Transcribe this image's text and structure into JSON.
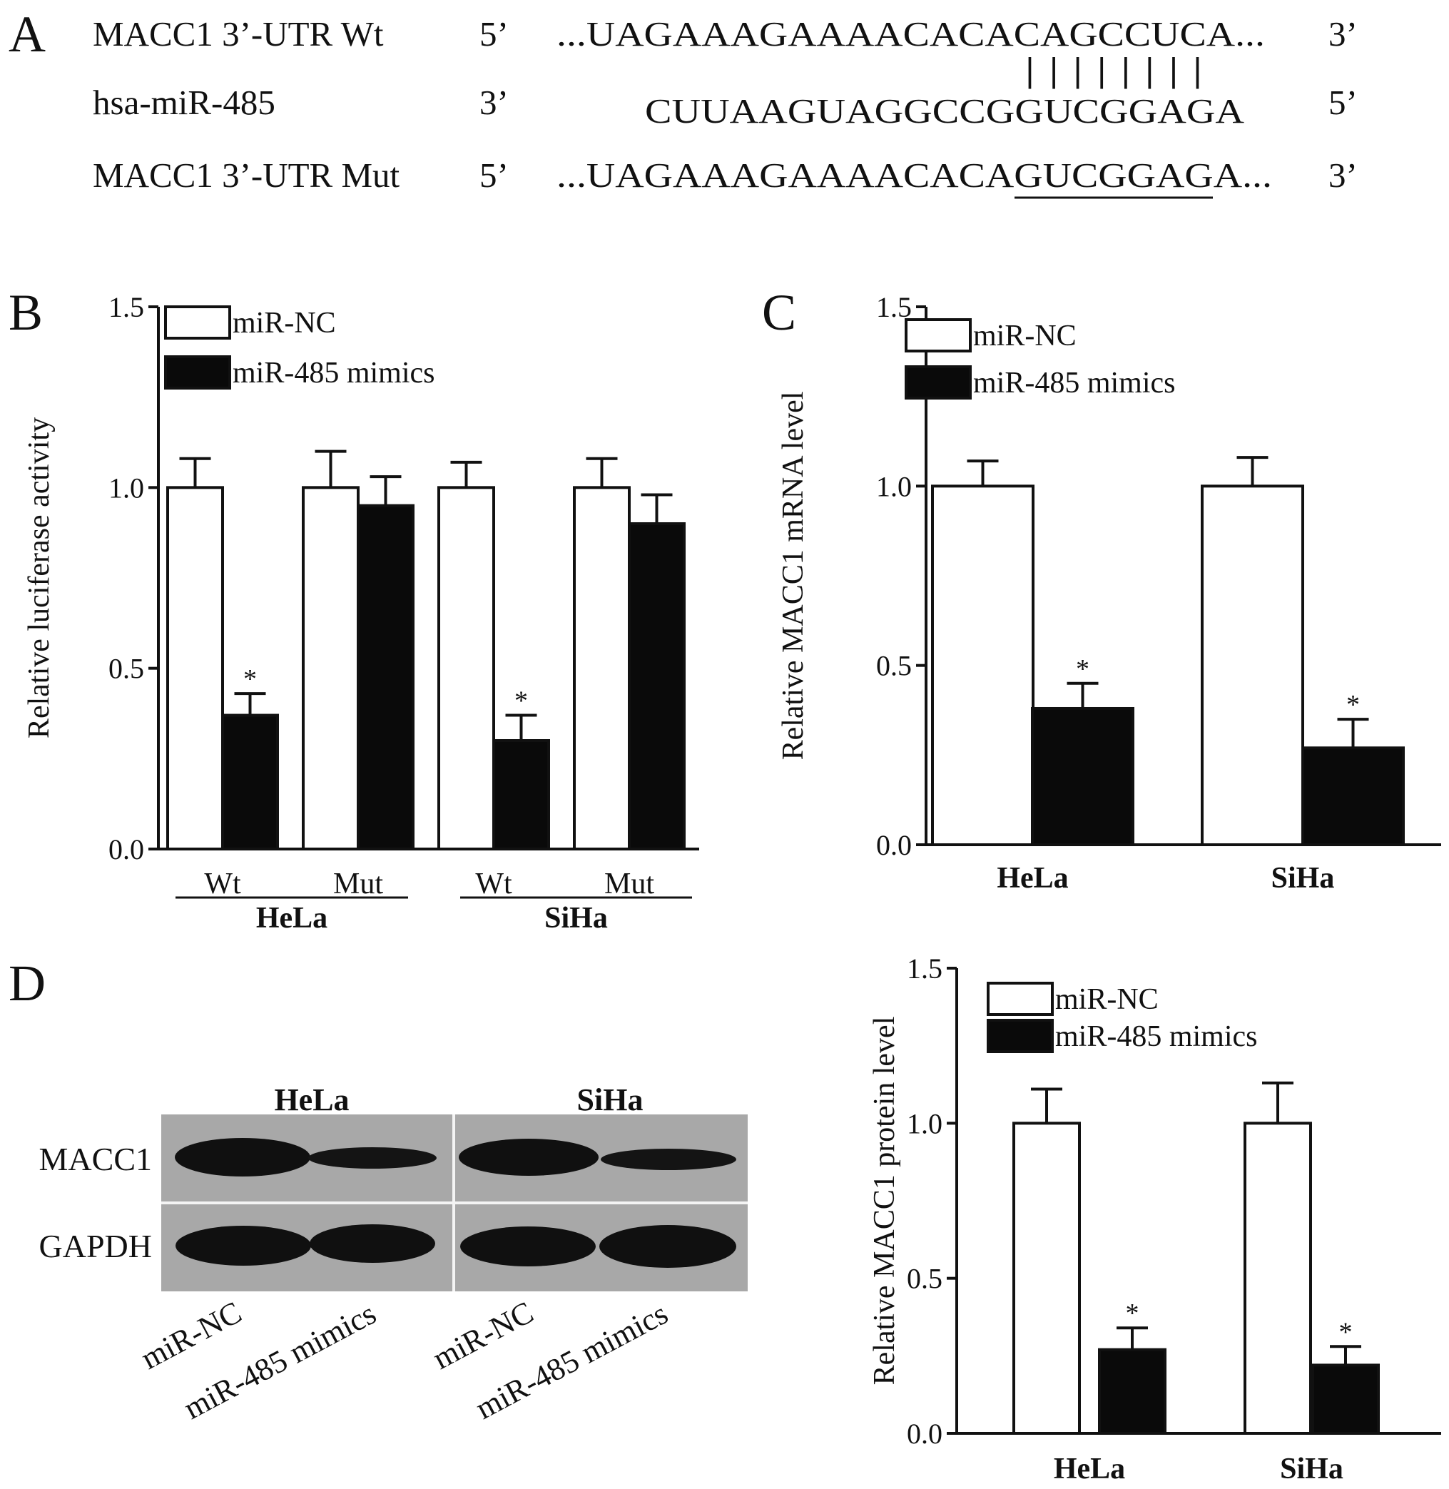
{
  "panels": {
    "a": {
      "letter": "A",
      "rows": [
        {
          "name": "MACC1 3’-UTR Wt",
          "end5": "5’",
          "seq": "...UAGAAAGAAAACACACAGCCUCA...",
          "end3": "3’"
        },
        {
          "name": "hsa-miR-485",
          "end5": "3’",
          "seq": "CUUAAGUAGGCCGGUCGGAGA",
          "end3": "5’"
        },
        {
          "name": "MACC1 3’-UTR Mut",
          "end5": "5’",
          "seq": "...UAGAAAGAAAACACAGUCGGAGA...",
          "end3": "3’"
        }
      ],
      "pairing": "| | | | | | | |"
    },
    "b": {
      "letter": "B"
    },
    "c": {
      "letter": "C"
    },
    "d": {
      "letter": "D",
      "blot": {
        "groups": [
          "HeLa",
          "SiHa"
        ],
        "rows": [
          "MACC1",
          "GAPDH"
        ],
        "lanes": [
          "miR-NC",
          "miR-485 mimics",
          "miR-NC",
          "miR-485 mimics"
        ]
      }
    }
  },
  "colors": {
    "nc": "#ffffff",
    "mimics": "#0a0a0a",
    "axis": "#111111",
    "blot_bg": "#a8a8a8",
    "band": "#101010"
  },
  "chart_data": [
    {
      "id": "b",
      "type": "bar",
      "ylabel": "Relative luciferase activity",
      "ylim": [
        0,
        1.5
      ],
      "yticks": [
        "0.0",
        "0.5",
        "1.0",
        "1.5"
      ],
      "categories": [
        "Wt",
        "Mut",
        "Wt",
        "Mut"
      ],
      "groups": [
        {
          "label": "HeLa",
          "span": [
            0,
            1
          ]
        },
        {
          "label": "SiHa",
          "span": [
            2,
            3
          ]
        }
      ],
      "legend": {
        "position": "top-left",
        "entries": [
          "miR-NC",
          "miR-485 mimics"
        ]
      },
      "series": [
        {
          "name": "miR-NC",
          "values": [
            1.0,
            1.0,
            1.0,
            1.0
          ],
          "errors": [
            0.08,
            0.1,
            0.07,
            0.08
          ],
          "marks": [
            "",
            "",
            "",
            ""
          ]
        },
        {
          "name": "miR-485 mimics",
          "values": [
            0.37,
            0.95,
            0.3,
            0.9
          ],
          "errors": [
            0.06,
            0.08,
            0.07,
            0.08
          ],
          "marks": [
            "*",
            "",
            "*",
            ""
          ]
        }
      ]
    },
    {
      "id": "c",
      "type": "bar",
      "ylabel": "Relative MACC1 mRNA level",
      "ylim": [
        0,
        1.5
      ],
      "yticks": [
        "0.0",
        "0.5",
        "1.0",
        "1.5"
      ],
      "categories": [
        "HeLa",
        "SiHa"
      ],
      "legend": {
        "position": "top-left",
        "entries": [
          "miR-NC",
          "miR-485 mimics"
        ]
      },
      "series": [
        {
          "name": "miR-NC",
          "values": [
            1.0,
            1.0
          ],
          "errors": [
            0.07,
            0.08
          ],
          "marks": [
            "",
            ""
          ]
        },
        {
          "name": "miR-485 mimics",
          "values": [
            0.38,
            0.27
          ],
          "errors": [
            0.07,
            0.08
          ],
          "marks": [
            "*",
            "*"
          ]
        }
      ]
    },
    {
      "id": "d",
      "type": "bar",
      "ylabel": "Relative MACC1 protein level",
      "ylim": [
        0,
        1.5
      ],
      "yticks": [
        "0.0",
        "0.5",
        "1.0",
        "1.5"
      ],
      "categories": [
        "HeLa",
        "SiHa"
      ],
      "legend": {
        "position": "top-left",
        "entries": [
          "miR-NC",
          "miR-485 mimics"
        ]
      },
      "series": [
        {
          "name": "miR-NC",
          "values": [
            1.0,
            1.0
          ],
          "errors": [
            0.11,
            0.13
          ],
          "marks": [
            "",
            ""
          ]
        },
        {
          "name": "miR-485 mimics",
          "values": [
            0.27,
            0.22
          ],
          "errors": [
            0.07,
            0.06
          ],
          "marks": [
            "*",
            "*"
          ]
        }
      ]
    }
  ]
}
